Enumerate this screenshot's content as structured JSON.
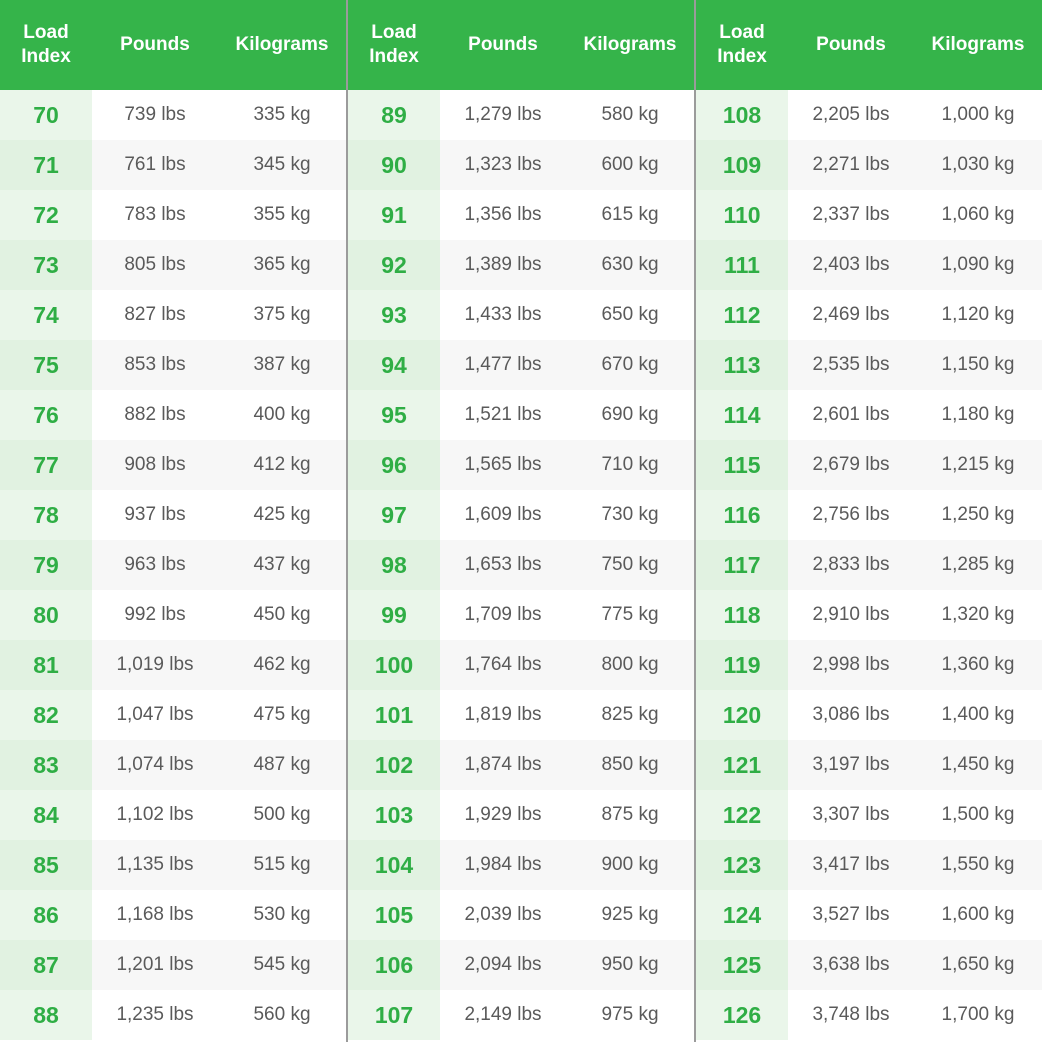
{
  "panels": [
    {
      "headers": [
        "Load Index",
        "Pounds",
        "Kilograms"
      ],
      "rows": [
        [
          "70",
          "739 lbs",
          "335 kg"
        ],
        [
          "71",
          "761 lbs",
          "345 kg"
        ],
        [
          "72",
          "783 lbs",
          "355 kg"
        ],
        [
          "73",
          "805 lbs",
          "365 kg"
        ],
        [
          "74",
          "827 lbs",
          "375 kg"
        ],
        [
          "75",
          "853 lbs",
          "387 kg"
        ],
        [
          "76",
          "882 lbs",
          "400 kg"
        ],
        [
          "77",
          "908 lbs",
          "412 kg"
        ],
        [
          "78",
          "937 lbs",
          "425 kg"
        ],
        [
          "79",
          "963 lbs",
          "437 kg"
        ],
        [
          "80",
          "992 lbs",
          "450 kg"
        ],
        [
          "81",
          "1,019 lbs",
          "462 kg"
        ],
        [
          "82",
          "1,047 lbs",
          "475 kg"
        ],
        [
          "83",
          "1,074 lbs",
          "487 kg"
        ],
        [
          "84",
          "1,102 lbs",
          "500 kg"
        ],
        [
          "85",
          "1,135 lbs",
          "515 kg"
        ],
        [
          "86",
          "1,168 lbs",
          "530 kg"
        ],
        [
          "87",
          "1,201 lbs",
          "545 kg"
        ],
        [
          "88",
          "1,235 lbs",
          "560 kg"
        ]
      ]
    },
    {
      "headers": [
        "Load Index",
        "Pounds",
        "Kilograms"
      ],
      "rows": [
        [
          "89",
          "1,279 lbs",
          "580 kg"
        ],
        [
          "90",
          "1,323 lbs",
          "600 kg"
        ],
        [
          "91",
          "1,356 lbs",
          "615 kg"
        ],
        [
          "92",
          "1,389 lbs",
          "630 kg"
        ],
        [
          "93",
          "1,433 lbs",
          "650 kg"
        ],
        [
          "94",
          "1,477 lbs",
          "670 kg"
        ],
        [
          "95",
          "1,521 lbs",
          "690 kg"
        ],
        [
          "96",
          "1,565 lbs",
          "710 kg"
        ],
        [
          "97",
          "1,609 lbs",
          "730 kg"
        ],
        [
          "98",
          "1,653 lbs",
          "750 kg"
        ],
        [
          "99",
          "1,709 lbs",
          "775 kg"
        ],
        [
          "100",
          "1,764 lbs",
          "800 kg"
        ],
        [
          "101",
          "1,819 lbs",
          "825 kg"
        ],
        [
          "102",
          "1,874 lbs",
          "850 kg"
        ],
        [
          "103",
          "1,929 lbs",
          "875 kg"
        ],
        [
          "104",
          "1,984 lbs",
          "900 kg"
        ],
        [
          "105",
          "2,039 lbs",
          "925 kg"
        ],
        [
          "106",
          "2,094 lbs",
          "950 kg"
        ],
        [
          "107",
          "2,149 lbs",
          "975 kg"
        ]
      ]
    },
    {
      "headers": [
        "Load Index",
        "Pounds",
        "Kilograms"
      ],
      "rows": [
        [
          "108",
          "2,205 lbs",
          "1,000 kg"
        ],
        [
          "109",
          "2,271 lbs",
          "1,030 kg"
        ],
        [
          "110",
          "2,337 lbs",
          "1,060 kg"
        ],
        [
          "111",
          "2,403 lbs",
          "1,090 kg"
        ],
        [
          "112",
          "2,469 lbs",
          "1,120 kg"
        ],
        [
          "113",
          "2,535 lbs",
          "1,150 kg"
        ],
        [
          "114",
          "2,601 lbs",
          "1,180 kg"
        ],
        [
          "115",
          "2,679 lbs",
          "1,215 kg"
        ],
        [
          "116",
          "2,756 lbs",
          "1,250 kg"
        ],
        [
          "117",
          "2,833 lbs",
          "1,285 kg"
        ],
        [
          "118",
          "2,910 lbs",
          "1,320 kg"
        ],
        [
          "119",
          "2,998 lbs",
          "1,360 kg"
        ],
        [
          "120",
          "3,086 lbs",
          "1,400 kg"
        ],
        [
          "121",
          "3,197 lbs",
          "1,450 kg"
        ],
        [
          "122",
          "3,307 lbs",
          "1,500 kg"
        ],
        [
          "123",
          "3,417 lbs",
          "1,550 kg"
        ],
        [
          "124",
          "3,527 lbs",
          "1,600 kg"
        ],
        [
          "125",
          "3,638 lbs",
          "1,650 kg"
        ],
        [
          "126",
          "3,748 lbs",
          "1,700 kg"
        ]
      ]
    }
  ]
}
